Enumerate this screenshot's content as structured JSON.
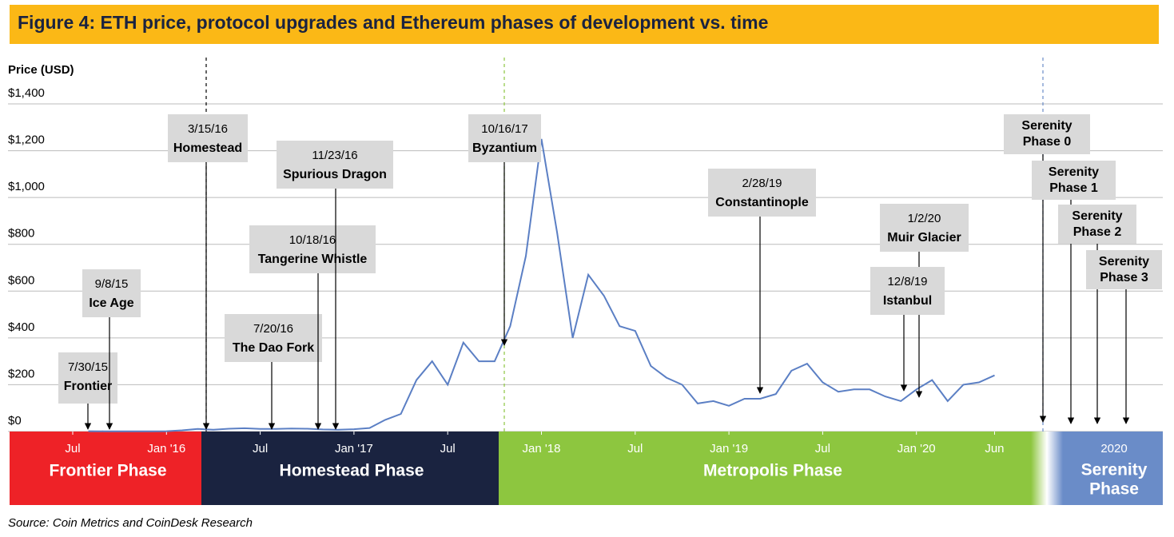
{
  "chart_data": {
    "type": "line",
    "title": "Figure 4: ETH price, protocol upgrades  and Ethereum phases of development vs. time",
    "y_label": "Price (USD)",
    "source": "Source: Coin Metrics and CoinDesk Research",
    "ylim": [
      0,
      1400
    ],
    "yticks": [
      {
        "value": 0,
        "label": "$0"
      },
      {
        "value": 200,
        "label": "$200"
      },
      {
        "value": 400,
        "label": "$400"
      },
      {
        "value": 600,
        "label": "$600"
      },
      {
        "value": 800,
        "label": "$800"
      },
      {
        "value": 1000,
        "label": "$1,000"
      },
      {
        "value": 1200,
        "label": "$1,200"
      },
      {
        "value": 1400,
        "label": "$1,400"
      }
    ],
    "grid": true,
    "xticks": [
      {
        "value": "2015-07",
        "label": "Jul"
      },
      {
        "value": "2016-01",
        "label": "Jan '16"
      },
      {
        "value": "2016-07",
        "label": "Jul"
      },
      {
        "value": "2017-01",
        "label": "Jan '17"
      },
      {
        "value": "2017-07",
        "label": "Jul"
      },
      {
        "value": "2018-01",
        "label": "Jan '18"
      },
      {
        "value": "2018-07",
        "label": "Jul"
      },
      {
        "value": "2019-01",
        "label": "Jan '19"
      },
      {
        "value": "2019-07",
        "label": "Jul"
      },
      {
        "value": "2020-01",
        "label": "Jan '20"
      },
      {
        "value": "2020-06",
        "label": "Jun"
      }
    ],
    "x": [
      "2015-08",
      "2015-09",
      "2015-10",
      "2015-11",
      "2015-12",
      "2016-01",
      "2016-02",
      "2016-03",
      "2016-04",
      "2016-05",
      "2016-06",
      "2016-07",
      "2016-08",
      "2016-09",
      "2016-10",
      "2016-11",
      "2016-12",
      "2017-01",
      "2017-02",
      "2017-03",
      "2017-04",
      "2017-05",
      "2017-06",
      "2017-07",
      "2017-08",
      "2017-09",
      "2017-10",
      "2017-11",
      "2017-12",
      "2018-01",
      "2018-02",
      "2018-03",
      "2018-04",
      "2018-05",
      "2018-06",
      "2018-07",
      "2018-08",
      "2018-09",
      "2018-10",
      "2018-11",
      "2018-12",
      "2019-01",
      "2019-02",
      "2019-03",
      "2019-04",
      "2019-05",
      "2019-06",
      "2019-07",
      "2019-08",
      "2019-09",
      "2019-10",
      "2019-11",
      "2019-12",
      "2020-01",
      "2020-02",
      "2020-03",
      "2020-04",
      "2020-05",
      "2020-06"
    ],
    "series": [
      {
        "name": "ETH price",
        "color": "#5b7fc4",
        "values": [
          1.2,
          0.9,
          0.6,
          0.9,
          0.9,
          1.5,
          5,
          11,
          8,
          12,
          14,
          11,
          11,
          13,
          12,
          9,
          8,
          10,
          15,
          50,
          75,
          220,
          300,
          200,
          380,
          300,
          300,
          450,
          750,
          1250,
          850,
          400,
          670,
          580,
          450,
          430,
          280,
          230,
          200,
          120,
          130,
          110,
          140,
          140,
          160,
          260,
          290,
          210,
          170,
          180,
          180,
          150,
          130,
          180,
          220,
          130,
          200,
          210,
          240
        ]
      }
    ],
    "annotations": [
      {
        "date": "7/30/15",
        "label": "Frontier"
      },
      {
        "date": "9/8/15",
        "label": "Ice Age"
      },
      {
        "date": "3/15/16",
        "label": "Homestead"
      },
      {
        "date": "7/20/16",
        "label": "The Dao Fork"
      },
      {
        "date": "10/18/16",
        "label": "Tangerine Whistle"
      },
      {
        "date": "11/23/16",
        "label": "Spurious Dragon"
      },
      {
        "date": "10/16/17",
        "label": "Byzantium"
      },
      {
        "date": "2/28/19",
        "label": "Constantinople"
      },
      {
        "date": "1/2/20",
        "label": "Muir Glacier"
      },
      {
        "date": "12/8/19",
        "label": "Istanbul"
      },
      {
        "label": [
          "Serenity",
          "Phase 0"
        ]
      },
      {
        "label": [
          "Serenity",
          "Phase 1"
        ]
      },
      {
        "label": [
          "Serenity",
          "Phase 2"
        ]
      },
      {
        "label": [
          "Serenity",
          "Phase 3"
        ]
      }
    ],
    "phases": [
      {
        "name": "Frontier Phase",
        "color": "#ee2227"
      },
      {
        "name": "Homestead Phase",
        "color": "#1a2340"
      },
      {
        "name": "Metropolis Phase",
        "color": "#8dc63f"
      },
      {
        "name": [
          "Serenity",
          "Phase"
        ],
        "color": "#6a8cc8",
        "period": "2020"
      }
    ]
  }
}
